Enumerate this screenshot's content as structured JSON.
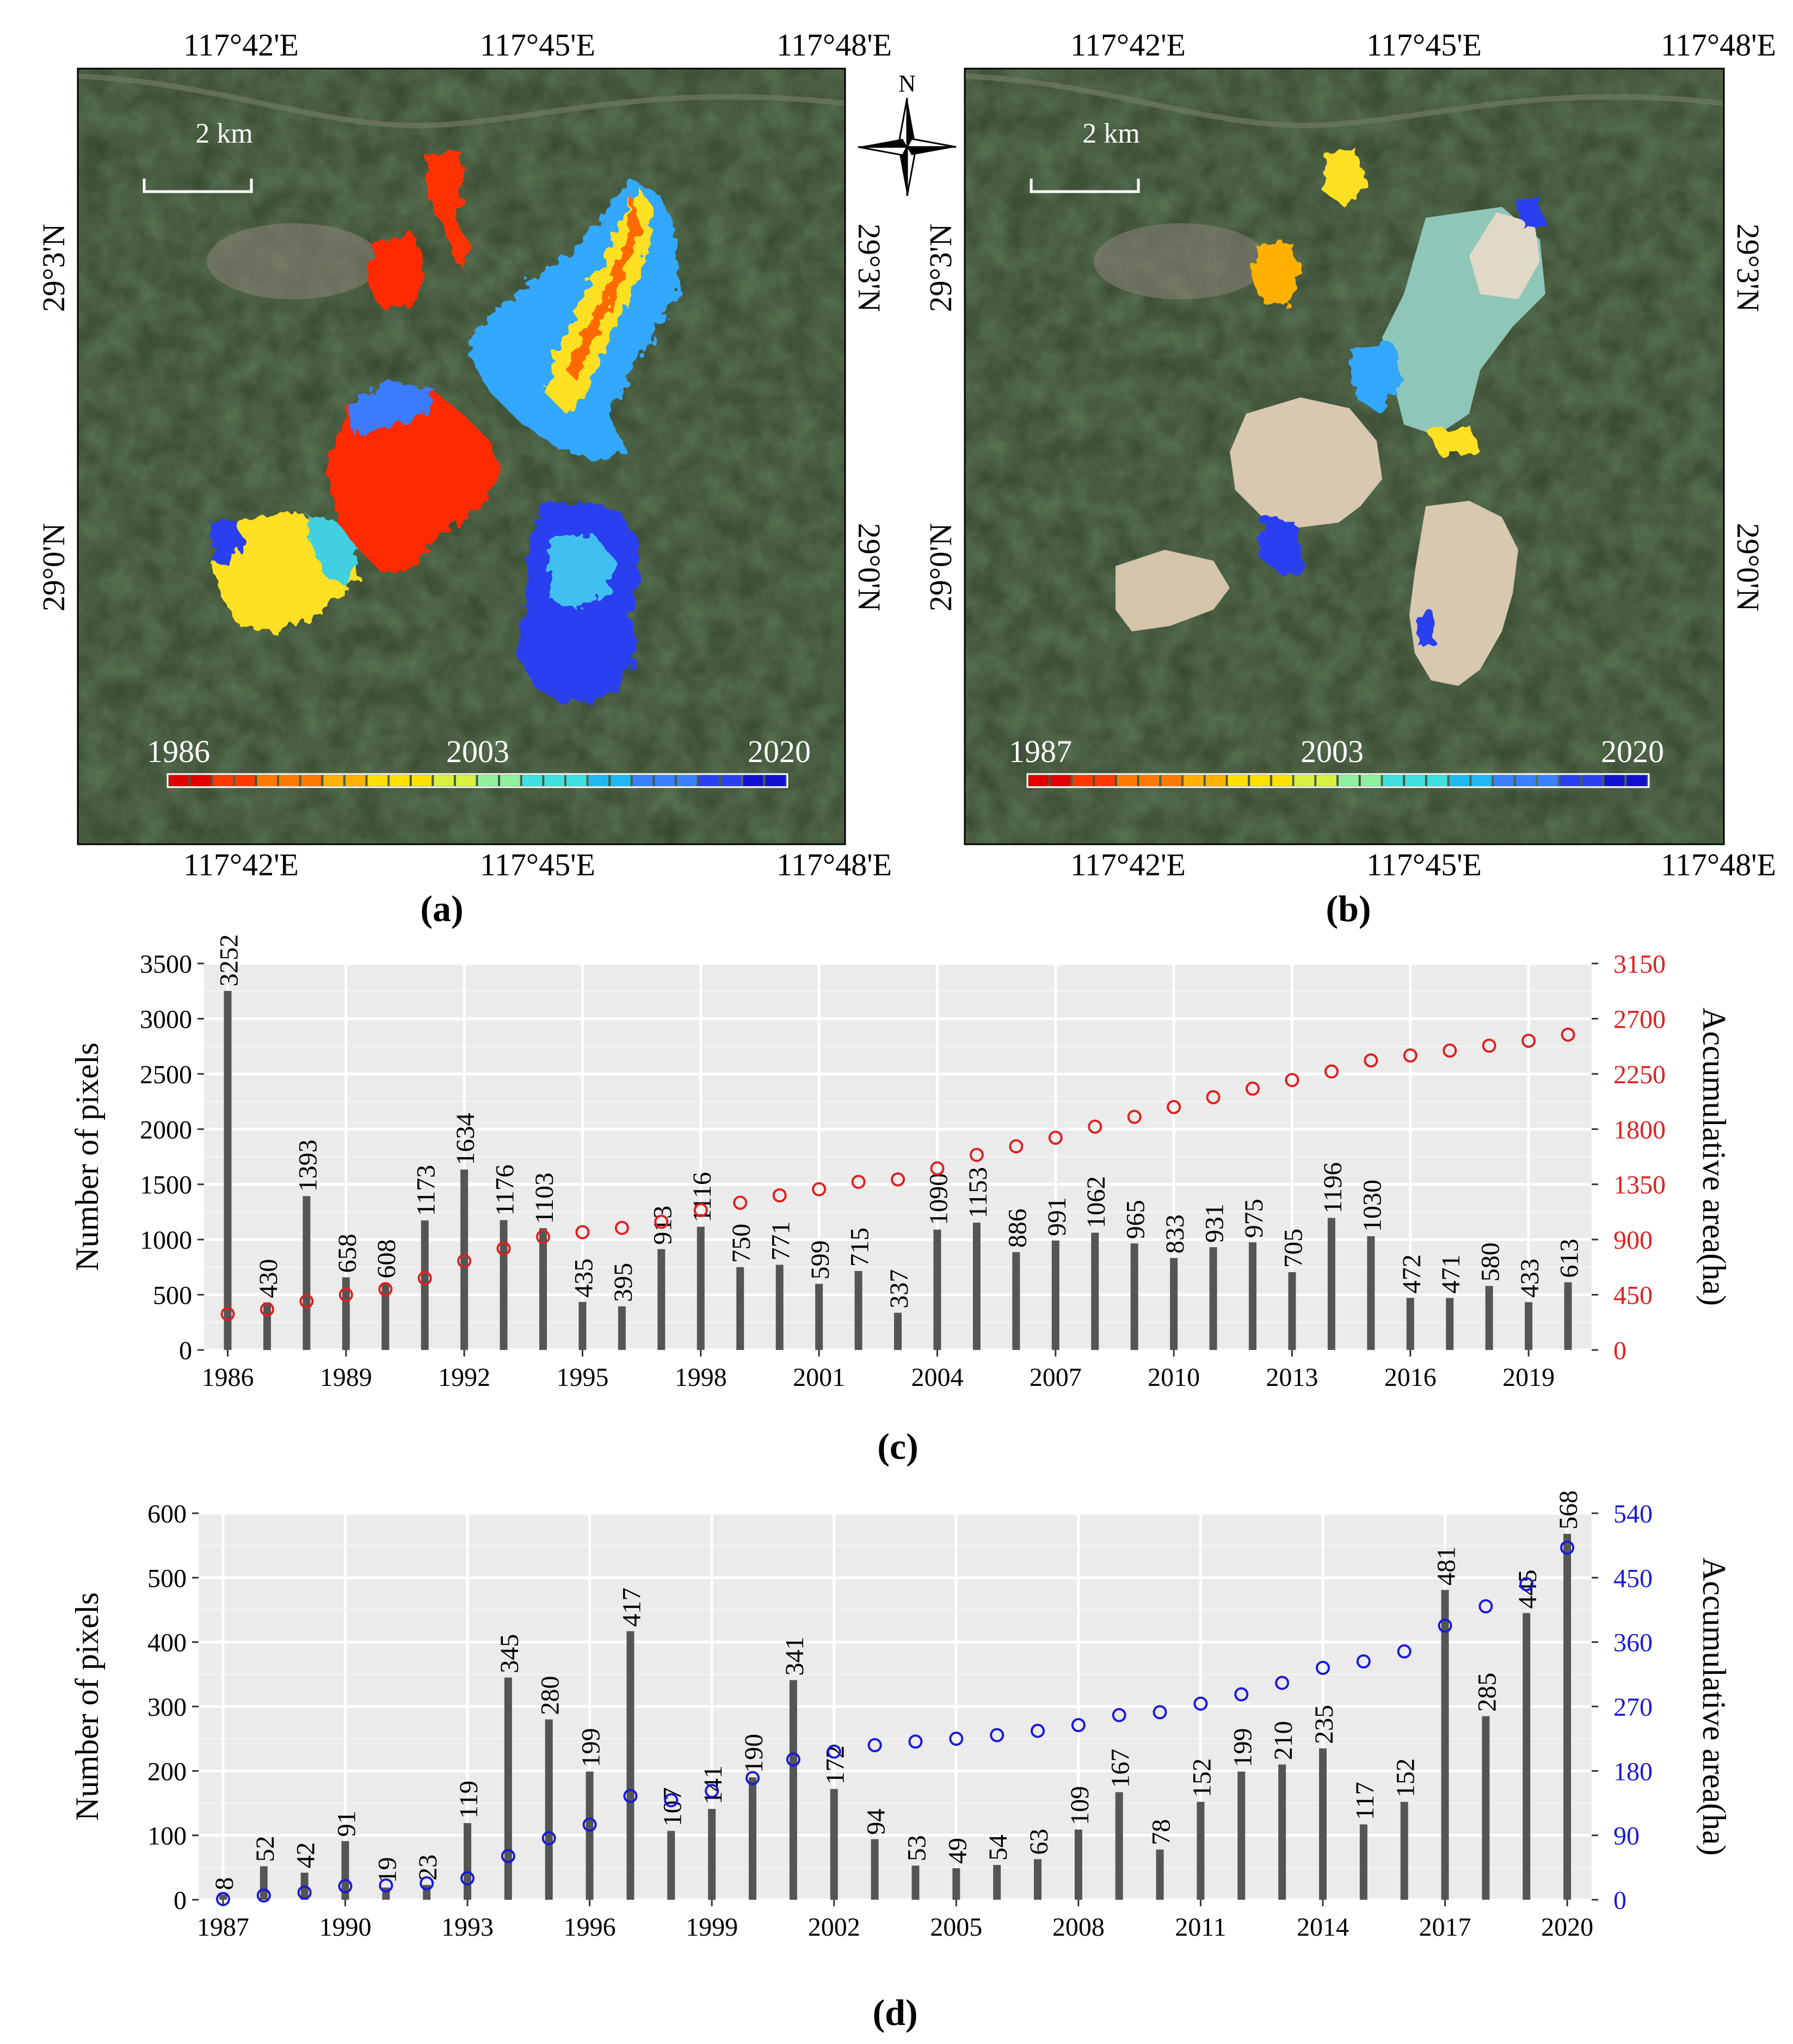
{
  "maps": {
    "a": {
      "label": "(a)",
      "top_lon_labels": [
        "117°42'E",
        "117°45'E",
        "117°48'E"
      ],
      "bottom_lon_labels": [
        "117°42'E",
        "117°45'E",
        "117°48'E"
      ],
      "lat_labels": [
        "29°3'N",
        "29°0'N"
      ],
      "scale_label": "2 km",
      "colorbar": {
        "start": "1986",
        "mid": "2003",
        "end": "2020"
      }
    },
    "b": {
      "label": "(b)",
      "top_lon_labels": [
        "117°42'E",
        "117°45'E",
        "117°48'E"
      ],
      "bottom_lon_labels": [
        "117°42'E",
        "117°45'E",
        "117°48'E"
      ],
      "lat_labels": [
        "29°3'N",
        "29°0'N"
      ],
      "scale_label": "2 km",
      "colorbar": {
        "start": "1987",
        "mid": "2003",
        "end": "2020"
      }
    },
    "north_label": "N",
    "colors": {
      "ramp": [
        "#e00000",
        "#ff3a00",
        "#ff7a00",
        "#ffb000",
        "#ffe000",
        "#d8f040",
        "#90f0a0",
        "#40e0e0",
        "#20b8f0",
        "#3a80ff",
        "#2a40f0",
        "#1010d0"
      ],
      "vegetation": "#34452e",
      "water": "#8ec6b8",
      "tailings": "#d8c8b0"
    }
  },
  "chart_data": [
    {
      "type": "bar",
      "panel_label": "(c)",
      "ylabel": "Number of pixels",
      "y2label": "Accumulative area(ha)",
      "ylim": [
        0,
        3500
      ],
      "y2lim": [
        0,
        3150
      ],
      "yticks": [
        0,
        500,
        1000,
        1500,
        2000,
        2500,
        3000,
        3500
      ],
      "y2ticks": [
        0,
        450,
        900,
        1350,
        1800,
        2250,
        2700,
        3150
      ],
      "xticks": [
        "1986",
        "1989",
        "1992",
        "1995",
        "1998",
        "2001",
        "2004",
        "2007",
        "2010",
        "2013",
        "2016",
        "2019"
      ],
      "bar_color": "#555555",
      "point_color": "#e02020",
      "categories": [
        "1986",
        "1987",
        "1988",
        "1989",
        "1990",
        "1991",
        "1992",
        "1993",
        "1994",
        "1995",
        "1996",
        "1997",
        "1998",
        "1999",
        "2000",
        "2001",
        "2002",
        "2003",
        "2004",
        "2005",
        "2006",
        "2007",
        "2008",
        "2009",
        "2010",
        "2011",
        "2012",
        "2013",
        "2014",
        "2015",
        "2016",
        "2017",
        "2018",
        "2019",
        "2020"
      ],
      "values": [
        3252,
        430,
        1393,
        658,
        608,
        1173,
        1634,
        1176,
        1103,
        435,
        395,
        913,
        1116,
        750,
        771,
        599,
        715,
        337,
        1090,
        1153,
        886,
        991,
        1062,
        965,
        833,
        931,
        975,
        705,
        1196,
        1030,
        472,
        471,
        580,
        433,
        613
      ],
      "value_labels": [
        "3252",
        "430",
        "1393",
        "658",
        "608",
        "1173",
        "1634",
        "1176",
        "1103",
        "435",
        "395",
        "913",
        "1116",
        "750",
        "771",
        "599",
        "715",
        "337",
        "1090",
        "1153",
        "886",
        "991",
        "1062",
        "965",
        "833",
        "931",
        "975",
        "705",
        "1196",
        "1030",
        "472",
        "471",
        "580",
        "433",
        "613"
      ],
      "accumulative": [
        293,
        331,
        397,
        450,
        495,
        585,
        725,
        827,
        922,
        960,
        995,
        1045,
        1140,
        1200,
        1260,
        1310,
        1370,
        1390,
        1480,
        1590,
        1660,
        1730,
        1820,
        1900,
        1980,
        2060,
        2130,
        2200,
        2270,
        2360,
        2400,
        2440,
        2480,
        2520,
        2570
      ]
    },
    {
      "type": "bar",
      "panel_label": "(d)",
      "ylabel": "Number of pixels",
      "y2label": "Accumulative area(ha)",
      "ylim": [
        0,
        600
      ],
      "y2lim": [
        0,
        540
      ],
      "yticks": [
        0,
        100,
        200,
        300,
        400,
        500,
        600
      ],
      "y2ticks": [
        0,
        90,
        180,
        270,
        360,
        450,
        540
      ],
      "xticks": [
        "1987",
        "1990",
        "1993",
        "1996",
        "1999",
        "2002",
        "2005",
        "2008",
        "2011",
        "2014",
        "2017",
        "2020"
      ],
      "bar_color": "#555555",
      "point_color": "#1a1ad8",
      "categories": [
        "1987",
        "1988",
        "1989",
        "1990",
        "1991",
        "1992",
        "1993",
        "1994",
        "1995",
        "1996",
        "1997",
        "1998",
        "1999",
        "2000",
        "2001",
        "2002",
        "2003",
        "2004",
        "2005",
        "2006",
        "2007",
        "2008",
        "2009",
        "2010",
        "2011",
        "2012",
        "2013",
        "2014",
        "2015",
        "2016",
        "2017",
        "2018",
        "2019",
        "2020"
      ],
      "values": [
        8,
        52,
        42,
        91,
        19,
        23,
        119,
        345,
        280,
        199,
        417,
        107,
        141,
        190,
        341,
        172,
        94,
        53,
        49,
        54,
        63,
        109,
        167,
        78,
        152,
        199,
        210,
        235,
        117,
        152,
        481,
        285,
        445,
        568
      ],
      "value_labels": [
        "8",
        "52",
        "42",
        "91",
        "19",
        "23",
        "119",
        "345",
        "280",
        "199",
        "417",
        "107",
        "141",
        "190",
        "341",
        "172",
        "94",
        "53",
        "49",
        "54",
        "63",
        "109",
        "167",
        "78",
        "152",
        "199",
        "210",
        "235",
        "117",
        "152",
        "481",
        "285",
        "445",
        "568"
      ],
      "accumulative": [
        1,
        6,
        10,
        19,
        20,
        23,
        30,
        61,
        86,
        105,
        145,
        139,
        152,
        170,
        196,
        207,
        216,
        221,
        225,
        230,
        236,
        244,
        258,
        262,
        274,
        287,
        303,
        324,
        333,
        347,
        383,
        410,
        441,
        492
      ]
    }
  ]
}
